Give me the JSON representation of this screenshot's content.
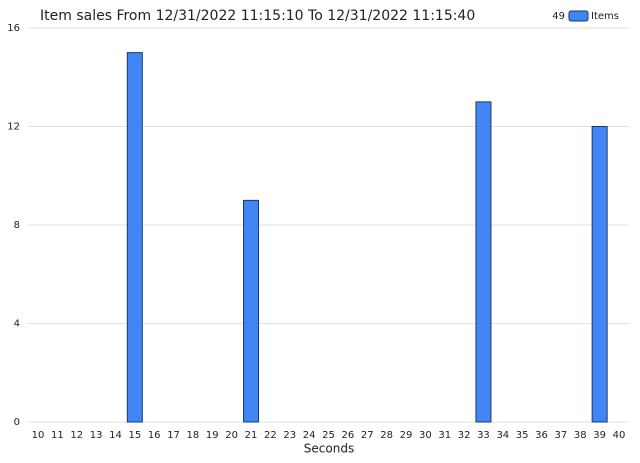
{
  "chart_data": {
    "type": "bar",
    "title": "Item sales From 12/31/2022 11:15:10 To 12/31/2022 11:15:40",
    "x_label": "Seconds",
    "categories": [
      "10",
      "11",
      "12",
      "13",
      "14",
      "15",
      "16",
      "17",
      "18",
      "19",
      "20",
      "21",
      "22",
      "23",
      "24",
      "25",
      "26",
      "27",
      "28",
      "29",
      "30",
      "31",
      "32",
      "33",
      "34",
      "35",
      "36",
      "37",
      "38",
      "39",
      "40"
    ],
    "series": [
      {
        "name": "Items",
        "color": "#4285f4",
        "values": [
          0,
          0,
          0,
          0,
          0,
          15,
          0,
          0,
          0,
          0,
          0,
          9,
          0,
          0,
          0,
          0,
          0,
          0,
          0,
          0,
          0,
          0,
          0,
          13,
          0,
          0,
          0,
          0,
          0,
          12,
          0
        ]
      }
    ],
    "legend_total": 49,
    "legend": "top-right",
    "ylim": [
      0,
      16
    ],
    "yticks": [
      0,
      4,
      8,
      12,
      16
    ],
    "grid": true
  }
}
